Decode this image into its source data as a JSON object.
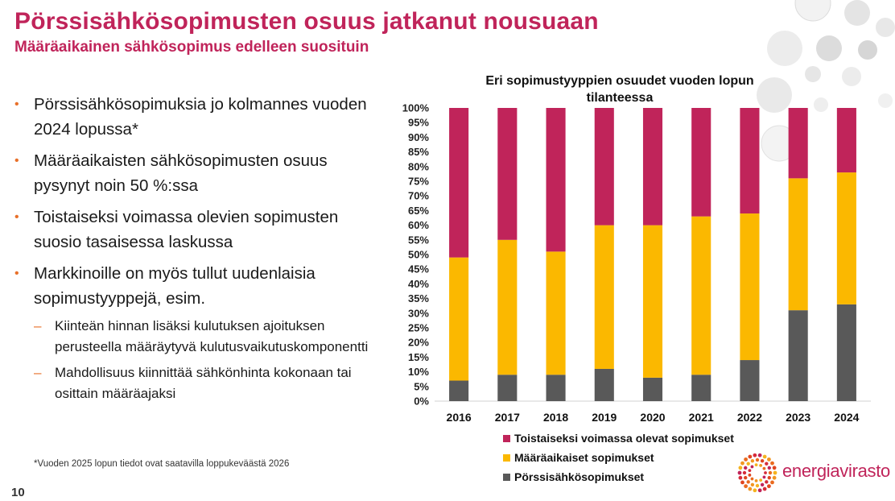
{
  "slide": {
    "title": "Pörssisähkösopimusten osuus jatkanut nousuaan",
    "subtitle": "Määräaikainen sähkösopimus edelleen suosituin",
    "bullets": [
      "Pörssisähkösopimuksia jo kolmannes vuoden 2024 lopussa*",
      "Määräaikaisten sähkösopimusten osuus pysynyt noin 50 %:ssa",
      "Toistaiseksi voimassa olevien sopimusten suosio tasaisessa laskussa",
      "Markkinoille on myös tullut uudenlaisia sopimustyyppejä, esim."
    ],
    "subbullets": [
      "Kiinteän hinnan lisäksi kulutuksen ajoituksen perusteella määräytyvä kulutusvaikutuskomponentti",
      "Mahdollisuus kiinnittää sähkönhinta kokonaan tai osittain määräajaksi"
    ],
    "footnote": "*Vuoden 2025 lopun tiedot ovat saatavilla loppukeväästä 2026",
    "page_number": "10",
    "logo_text": "energiavirasto",
    "colors": {
      "brand": "#c0245a",
      "bullet": "#e8702a"
    }
  },
  "chart_data": {
    "type": "bar",
    "stacked": true,
    "title": "Eri sopimustyyppien osuudet vuoden lopun tilanteessa",
    "categories": [
      "2016",
      "2017",
      "2018",
      "2019",
      "2020",
      "2021",
      "2022",
      "2023",
      "2024"
    ],
    "series": [
      {
        "name": "Pörssisähkösopimukset",
        "color": "#595959",
        "values": [
          7,
          9,
          9,
          11,
          8,
          9,
          14,
          31,
          33
        ]
      },
      {
        "name": "Määräaikaiset sopimukset",
        "color": "#fbb800",
        "values": [
          42,
          46,
          42,
          49,
          52,
          54,
          50,
          45,
          45
        ]
      },
      {
        "name": "Toistaiseksi voimassa olevat sopimukset",
        "color": "#c0245a",
        "values": [
          51,
          45,
          49,
          40,
          40,
          37,
          36,
          24,
          22
        ]
      }
    ],
    "legend_order": [
      "Toistaiseksi voimassa olevat sopimukset",
      "Määräaikaiset sopimukset",
      "Pörssisähkösopimukset"
    ],
    "ylim": [
      0,
      100
    ],
    "ytick_step": 5,
    "ytick_suffix": "%",
    "xlabel": "",
    "ylabel": "",
    "grid": false,
    "legend_position": "bottom"
  }
}
